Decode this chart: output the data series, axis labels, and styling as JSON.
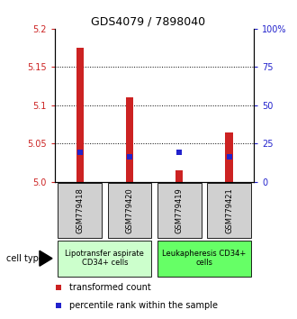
{
  "title": "GDS4079 / 7898040",
  "samples": [
    "GSM779418",
    "GSM779420",
    "GSM779419",
    "GSM779421"
  ],
  "red_values": [
    5.175,
    5.11,
    5.015,
    5.065
  ],
  "blue_values": [
    5.038,
    5.033,
    5.038,
    5.033
  ],
  "ylim": [
    5.0,
    5.2
  ],
  "yticks_left": [
    5.0,
    5.05,
    5.1,
    5.15,
    5.2
  ],
  "yticks_right_vals": [
    5.0,
    5.05,
    5.1,
    5.15,
    5.2
  ],
  "yticks_right_labels": [
    "0",
    "25",
    "50",
    "75",
    "100%"
  ],
  "gridlines": [
    5.05,
    5.1,
    5.15
  ],
  "red_color": "#cc2222",
  "blue_color": "#2222cc",
  "cell_groups": [
    {
      "label": "Lipotransfer aspirate\nCD34+ cells",
      "color": "#ccffcc",
      "cols": [
        0,
        1
      ]
    },
    {
      "label": "Leukapheresis CD34+\ncells",
      "color": "#66ff66",
      "cols": [
        2,
        3
      ]
    }
  ],
  "bar_width": 0.15,
  "blue_marker_size": 5,
  "legend_red_label": "transformed count",
  "legend_blue_label": "percentile rank within the sample",
  "cell_type_label": "cell type",
  "plot_bg": "#ffffff",
  "sample_box_color": "#d0d0d0",
  "title_fontsize": 9,
  "tick_fontsize": 7,
  "legend_fontsize": 7,
  "sample_fontsize": 6,
  "group_fontsize": 6
}
